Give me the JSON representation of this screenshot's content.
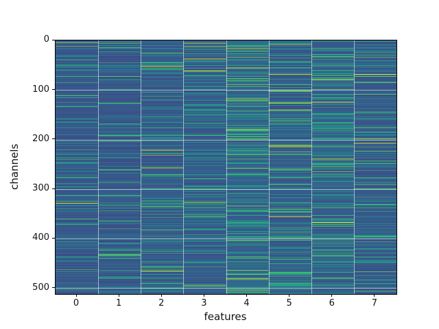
{
  "chart_data": {
    "type": "heatmap",
    "title": "",
    "xlabel": "features",
    "ylabel": "channels",
    "x_tick_labels": [
      "0",
      "1",
      "2",
      "3",
      "4",
      "5",
      "6",
      "7"
    ],
    "y_tick_labels": [
      "0",
      "100",
      "200",
      "300",
      "400",
      "500"
    ],
    "y_tick_values": [
      0,
      100,
      200,
      300,
      400,
      500
    ],
    "n_rows": 512,
    "n_cols": 8,
    "x_range": [
      -0.5,
      7.5
    ],
    "y_range": [
      511.5,
      -0.5
    ],
    "colormap": "viridis",
    "colormap_stops": [
      [
        0.0,
        "#440154"
      ],
      [
        0.125,
        "#482878"
      ],
      [
        0.25,
        "#3b528b"
      ],
      [
        0.375,
        "#2c728e"
      ],
      [
        0.5,
        "#21918c"
      ],
      [
        0.625,
        "#27ad81"
      ],
      [
        0.75,
        "#5ec962"
      ],
      [
        0.875,
        "#aadc32"
      ],
      [
        1.0,
        "#fde725"
      ]
    ],
    "background_color": "#ffffff",
    "grid_color": "rgba(255,255,255,0.55)",
    "spine_color": "#000000",
    "seed": 7,
    "row_bright_band_prob": 0.05,
    "column_profiles": [
      {
        "feature": 0,
        "base": 0.27,
        "streak_prob": 0.1,
        "bright_prob": 0.005
      },
      {
        "feature": 1,
        "base": 0.27,
        "streak_prob": 0.1,
        "bright_prob": 0.005
      },
      {
        "feature": 2,
        "base": 0.28,
        "streak_prob": 0.14,
        "bright_prob": 0.006
      },
      {
        "feature": 3,
        "base": 0.28,
        "streak_prob": 0.17,
        "bright_prob": 0.008
      },
      {
        "feature": 4,
        "base": 0.3,
        "streak_prob": 0.3,
        "bright_prob": 0.014
      },
      {
        "feature": 5,
        "base": 0.28,
        "streak_prob": 0.22,
        "bright_prob": 0.02
      },
      {
        "feature": 6,
        "base": 0.29,
        "streak_prob": 0.26,
        "bright_prob": 0.015
      },
      {
        "feature": 7,
        "base": 0.27,
        "streak_prob": 0.15,
        "bright_prob": 0.01
      }
    ]
  }
}
